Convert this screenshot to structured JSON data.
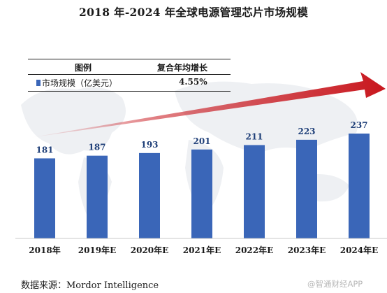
{
  "title": "2018 年-2024 年全球电源管理芯片市场规模",
  "legend_table": {
    "header_legend": "图例",
    "header_cagr": "复合年均增长",
    "series_label": "市场规模（亿美元）",
    "cagr_value": "4.55%"
  },
  "chart_data": {
    "type": "bar",
    "categories": [
      "2018年",
      "2019年E",
      "2020年E",
      "2021年E",
      "2022年E",
      "2023年E",
      "2024年E"
    ],
    "series": [
      {
        "name": "市场规模（亿美元）",
        "values": [
          181,
          187,
          193,
          201,
          211,
          223,
          237
        ]
      }
    ],
    "title": "2018 年-2024 年全球电源管理芯片市场规模",
    "xlabel": "",
    "ylabel": "",
    "grid": false,
    "legend": "top-left",
    "bar_color": "#3a66b8",
    "arrow_color": "#c8161d"
  },
  "source": "数据来源：Mordor Intelligence",
  "watermark": "@智通财经APP"
}
